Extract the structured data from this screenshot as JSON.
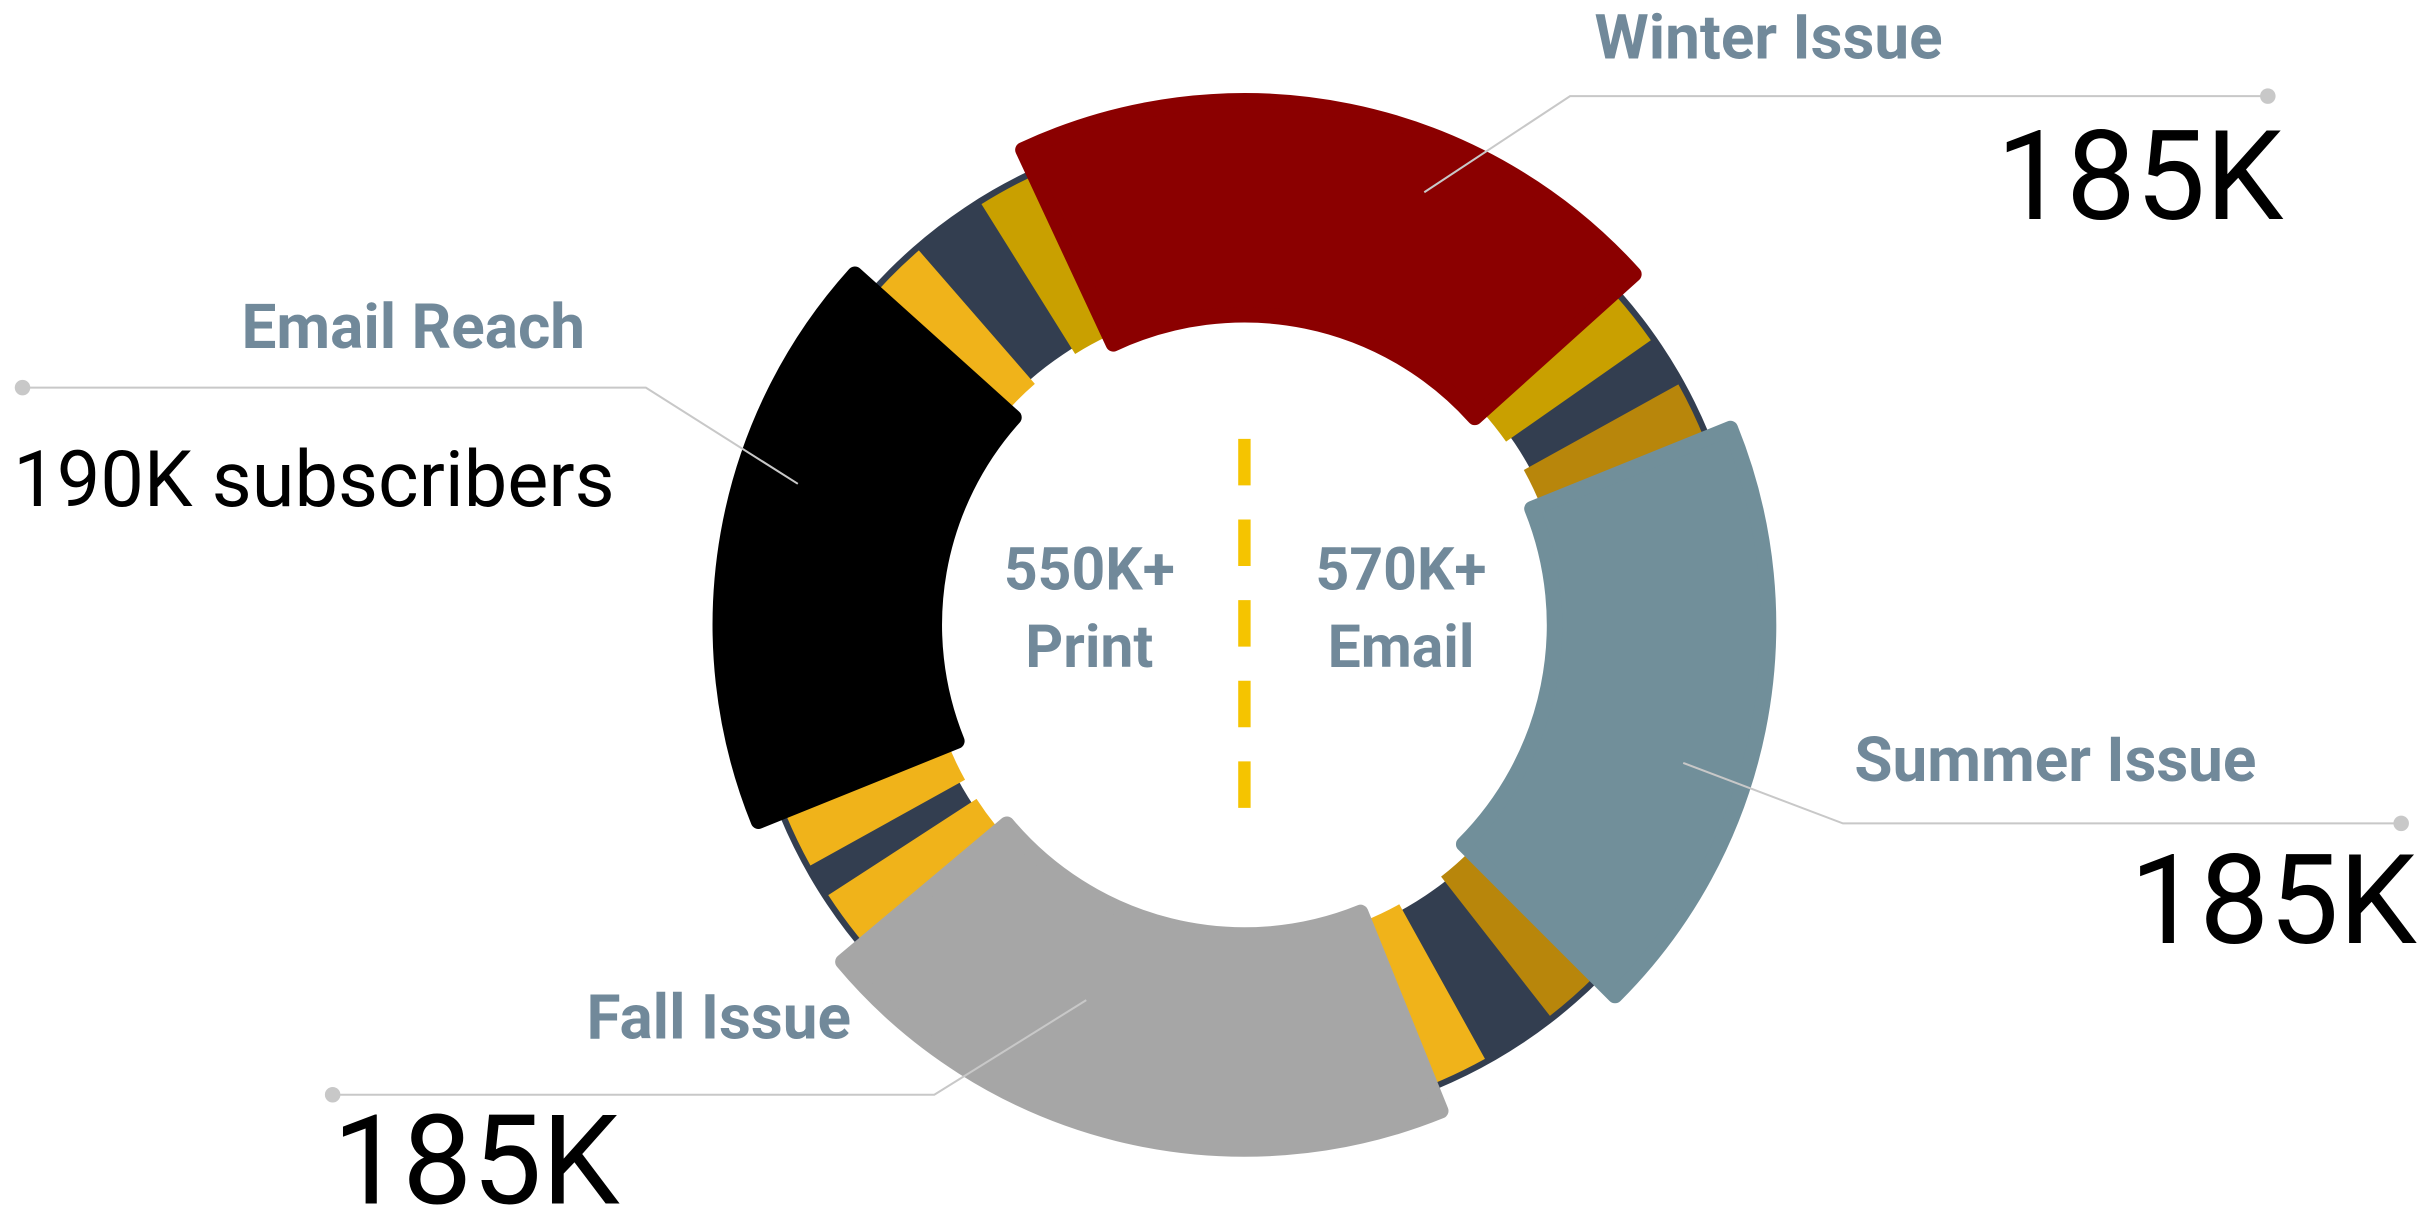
{
  "center": {
    "left_value": "550K+",
    "left_label": "Print",
    "right_value": "570K+",
    "right_label": "Email"
  },
  "segments": [
    {
      "label": "Winter Issue",
      "value": "185K"
    },
    {
      "label": "Summer Issue",
      "value": "185K"
    },
    {
      "label": "Fall Issue",
      "value": "185K"
    },
    {
      "label": "Email Reach",
      "value": "190K subscribers"
    }
  ]
}
